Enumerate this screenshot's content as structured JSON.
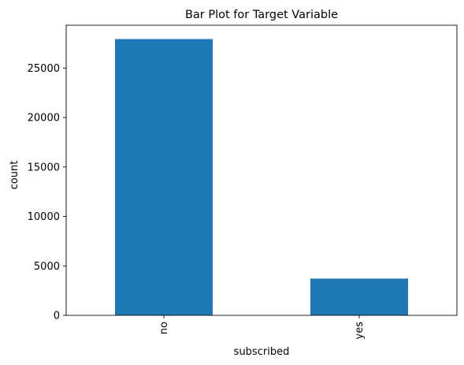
{
  "chart_data": {
    "type": "bar",
    "title": "Bar Plot for Target Variable",
    "xlabel": "subscribed",
    "ylabel": "count",
    "categories": [
      "no",
      "yes"
    ],
    "values": [
      27932,
      3715
    ],
    "ylim": [
      0,
      29330
    ],
    "yticks": [
      0,
      5000,
      10000,
      15000,
      20000,
      25000
    ],
    "ytick_labels": [
      "0",
      "5000",
      "10000",
      "15000",
      "20000",
      "25000"
    ],
    "bar_color": "#1f77b4",
    "grid": false,
    "legend": "none"
  }
}
